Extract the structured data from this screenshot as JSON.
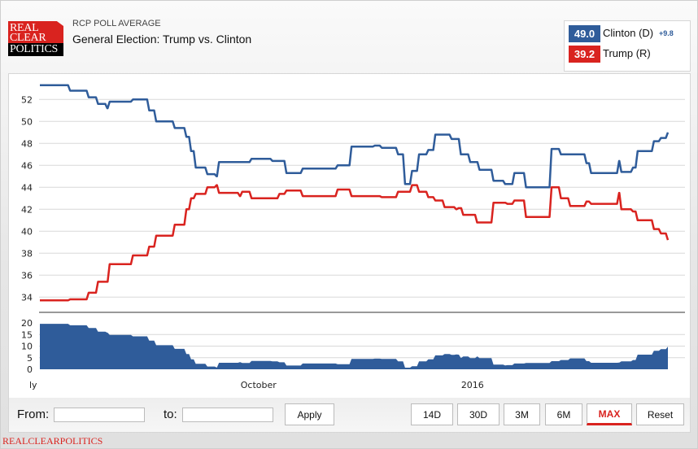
{
  "logo": {
    "line1": "REAL",
    "line2": "CLEAR",
    "line3": "POLITICS"
  },
  "header": {
    "subtitle": "RCP POLL AVERAGE",
    "title": "General Election: Trump vs. Clinton"
  },
  "legend": {
    "clinton": {
      "value": "49.0",
      "name": "Clinton (D)",
      "spread": "+9.8",
      "color": "#2f5c9a"
    },
    "trump": {
      "value": "39.2",
      "name": "Trump (R)",
      "color": "#d9231f"
    }
  },
  "controls": {
    "from_label": "From:",
    "from_value": "",
    "to_label": "to:",
    "to_value": "",
    "apply": "Apply",
    "ranges": [
      "14D",
      "30D",
      "3M",
      "6M",
      "MAX",
      "Reset"
    ],
    "active_range": "MAX"
  },
  "footer": "REALCLEARPOLITICS",
  "chart_data": {
    "type": "line",
    "grid": true,
    "main": {
      "ylim": [
        33,
        54
      ],
      "yticks": [
        34,
        36,
        38,
        40,
        42,
        44,
        46,
        48,
        50,
        52
      ]
    },
    "spread_panel": {
      "type": "area",
      "ylim": [
        0,
        21
      ],
      "yticks": [
        0,
        5,
        10,
        15,
        20
      ],
      "color": "#2f5c9a"
    },
    "xlim": [
      "2015-06-29",
      "2016-03-25"
    ],
    "xticks": [
      {
        "date": "2015-07-01",
        "label": "ly"
      },
      {
        "date": "2015-10-01",
        "label": "October"
      },
      {
        "date": "2016-01-01",
        "label": "2016"
      }
    ],
    "series": [
      {
        "name": "Clinton (D)",
        "color": "#2f5c9a",
        "points": [
          [
            "2015-06-29",
            53.3
          ],
          [
            "2015-07-12",
            52.8
          ],
          [
            "2015-07-20",
            52.2
          ],
          [
            "2015-07-24",
            51.6
          ],
          [
            "2015-07-28",
            51.2
          ],
          [
            "2015-07-29",
            51.8
          ],
          [
            "2015-08-08",
            52.0
          ],
          [
            "2015-08-15",
            51.0
          ],
          [
            "2015-08-18",
            50.0
          ],
          [
            "2015-08-26",
            49.4
          ],
          [
            "2015-08-31",
            48.6
          ],
          [
            "2015-09-02",
            47.3
          ],
          [
            "2015-09-04",
            45.8
          ],
          [
            "2015-09-09",
            45.2
          ],
          [
            "2015-09-13",
            45.0
          ],
          [
            "2015-09-14",
            46.3
          ],
          [
            "2015-09-28",
            46.6
          ],
          [
            "2015-10-07",
            46.4
          ],
          [
            "2015-10-13",
            45.3
          ],
          [
            "2015-10-20",
            45.7
          ],
          [
            "2015-11-04",
            46.0
          ],
          [
            "2015-11-10",
            47.7
          ],
          [
            "2015-11-20",
            47.8
          ],
          [
            "2015-11-23",
            47.6
          ],
          [
            "2015-11-30",
            47.0
          ],
          [
            "2015-12-03",
            44.3
          ],
          [
            "2015-12-06",
            45.5
          ],
          [
            "2015-12-09",
            47.0
          ],
          [
            "2015-12-13",
            47.4
          ],
          [
            "2015-12-16",
            48.8
          ],
          [
            "2015-12-23",
            48.4
          ],
          [
            "2015-12-27",
            47.0
          ],
          [
            "2015-12-31",
            46.3
          ],
          [
            "2016-01-04",
            45.6
          ],
          [
            "2016-01-10",
            44.6
          ],
          [
            "2016-01-15",
            44.3
          ],
          [
            "2016-01-19",
            45.3
          ],
          [
            "2016-01-24",
            44.0
          ],
          [
            "2016-02-04",
            47.5
          ],
          [
            "2016-02-08",
            47.0
          ],
          [
            "2016-02-19",
            46.2
          ],
          [
            "2016-02-21",
            45.3
          ],
          [
            "2016-03-04",
            46.4
          ],
          [
            "2016-03-05",
            45.4
          ],
          [
            "2016-03-10",
            45.8
          ],
          [
            "2016-03-12",
            47.3
          ],
          [
            "2016-03-19",
            48.2
          ],
          [
            "2016-03-22",
            48.5
          ],
          [
            "2016-03-25",
            49.0
          ]
        ]
      },
      {
        "name": "Trump (R)",
        "color": "#d9231f",
        "points": [
          [
            "2015-06-29",
            33.7
          ],
          [
            "2015-07-12",
            33.8
          ],
          [
            "2015-07-20",
            34.4
          ],
          [
            "2015-07-24",
            35.4
          ],
          [
            "2015-07-29",
            37.0
          ],
          [
            "2015-08-08",
            37.8
          ],
          [
            "2015-08-15",
            38.6
          ],
          [
            "2015-08-18",
            39.6
          ],
          [
            "2015-08-26",
            40.6
          ],
          [
            "2015-08-31",
            42.0
          ],
          [
            "2015-09-02",
            43.0
          ],
          [
            "2015-09-04",
            43.4
          ],
          [
            "2015-09-09",
            44.0
          ],
          [
            "2015-09-13",
            44.2
          ],
          [
            "2015-09-14",
            43.5
          ],
          [
            "2015-09-23",
            43.2
          ],
          [
            "2015-09-24",
            43.6
          ],
          [
            "2015-09-28",
            43.0
          ],
          [
            "2015-10-10",
            43.4
          ],
          [
            "2015-10-13",
            43.7
          ],
          [
            "2015-10-20",
            43.2
          ],
          [
            "2015-11-04",
            43.8
          ],
          [
            "2015-11-10",
            43.2
          ],
          [
            "2015-11-23",
            43.1
          ],
          [
            "2015-11-30",
            43.6
          ],
          [
            "2015-12-06",
            44.2
          ],
          [
            "2015-12-09",
            43.6
          ],
          [
            "2015-12-13",
            43.1
          ],
          [
            "2015-12-16",
            42.8
          ],
          [
            "2015-12-20",
            42.2
          ],
          [
            "2015-12-25",
            42.0
          ],
          [
            "2015-12-26",
            42.1
          ],
          [
            "2015-12-28",
            41.5
          ],
          [
            "2016-01-03",
            40.8
          ],
          [
            "2016-01-10",
            42.6
          ],
          [
            "2016-01-16",
            42.5
          ],
          [
            "2016-01-19",
            42.8
          ],
          [
            "2016-01-24",
            41.3
          ],
          [
            "2016-02-04",
            44.0
          ],
          [
            "2016-02-08",
            43.0
          ],
          [
            "2016-02-12",
            42.3
          ],
          [
            "2016-02-19",
            42.7
          ],
          [
            "2016-02-21",
            42.5
          ],
          [
            "2016-03-04",
            43.5
          ],
          [
            "2016-03-05",
            42.0
          ],
          [
            "2016-03-10",
            41.8
          ],
          [
            "2016-03-12",
            41.0
          ],
          [
            "2016-03-19",
            40.2
          ],
          [
            "2016-03-22",
            39.8
          ],
          [
            "2016-03-25",
            39.2
          ]
        ]
      }
    ]
  }
}
